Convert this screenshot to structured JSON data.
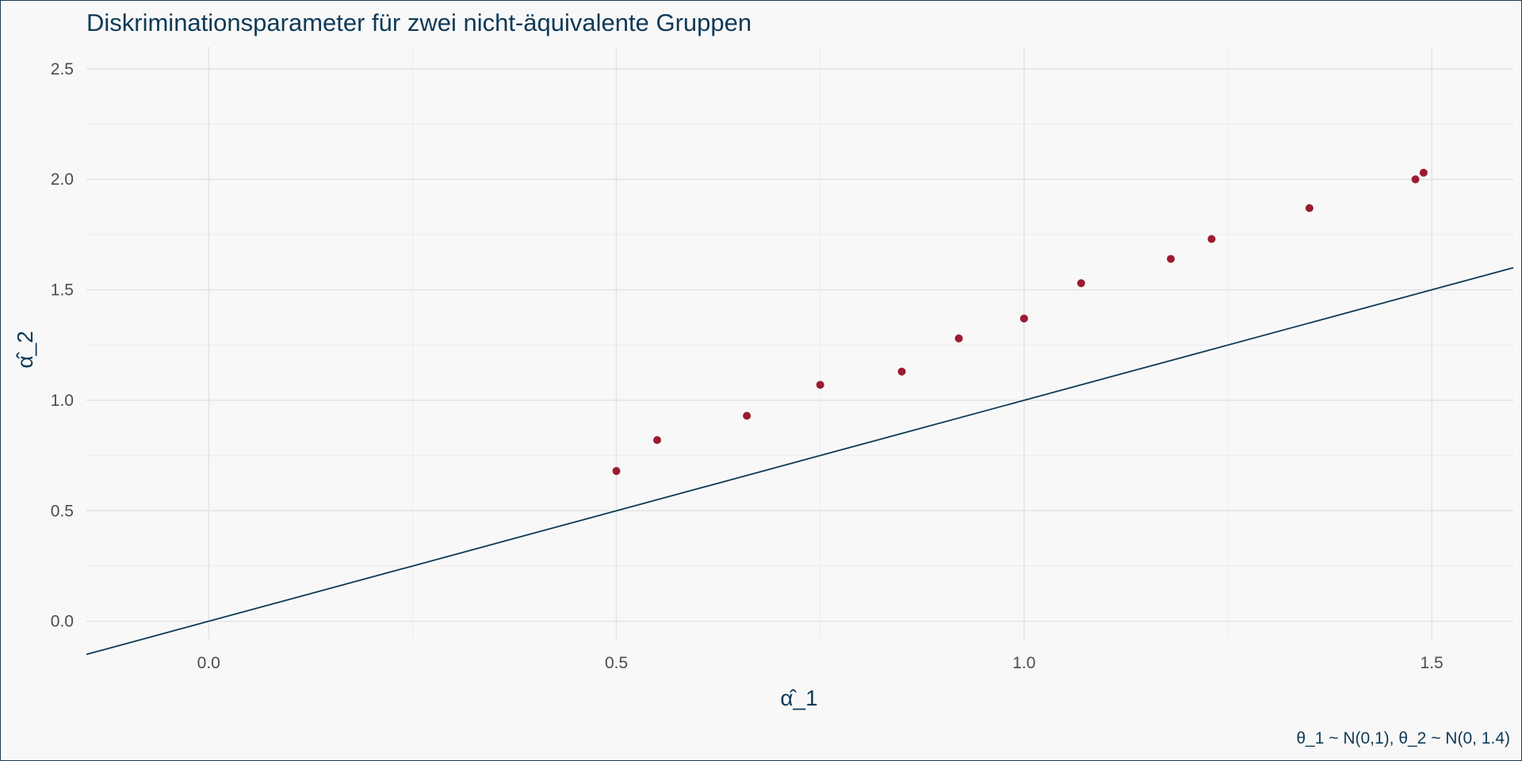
{
  "chart_data": {
    "type": "scatter",
    "title": "Diskriminationsparameter für zwei nicht-äquivalente Gruppen",
    "xlabel": "α̂_1",
    "ylabel": "α̂_2",
    "caption": "θ_1 ~ N(0,1), θ_2 ~ N(0, 1.4)",
    "xlim": [
      -0.15,
      1.6
    ],
    "ylim": [
      -0.08,
      2.6
    ],
    "x_ticks": [
      0.0,
      0.5,
      1.0,
      1.5
    ],
    "x_tick_labels": [
      "0.0",
      "0.5",
      "1.0",
      "1.5"
    ],
    "y_ticks": [
      0.0,
      0.5,
      1.0,
      1.5,
      2.0,
      2.5
    ],
    "y_tick_labels": [
      "0.0",
      "0.5",
      "1.0",
      "1.5",
      "2.0",
      "2.5"
    ],
    "grid": true,
    "reference_line": {
      "intercept": 0,
      "slope": 1,
      "color": "#0f3a57"
    },
    "point_color": "#9b1b33",
    "points": [
      {
        "x": 0.5,
        "y": 0.68
      },
      {
        "x": 0.55,
        "y": 0.82
      },
      {
        "x": 0.66,
        "y": 0.93
      },
      {
        "x": 0.75,
        "y": 1.07
      },
      {
        "x": 0.85,
        "y": 1.13
      },
      {
        "x": 0.92,
        "y": 1.28
      },
      {
        "x": 1.0,
        "y": 1.37
      },
      {
        "x": 1.07,
        "y": 1.53
      },
      {
        "x": 1.18,
        "y": 1.64
      },
      {
        "x": 1.23,
        "y": 1.73
      },
      {
        "x": 1.35,
        "y": 1.87
      },
      {
        "x": 1.48,
        "y": 2.0
      },
      {
        "x": 1.49,
        "y": 2.03
      }
    ]
  }
}
